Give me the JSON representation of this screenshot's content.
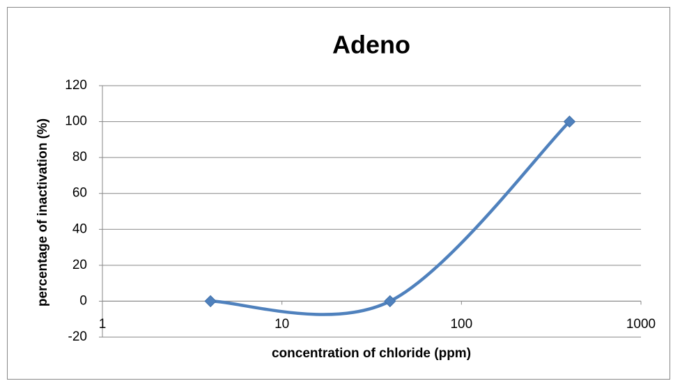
{
  "chart_data": {
    "type": "line",
    "title": "Adeno",
    "x_label": "concentration of chloride (ppm)",
    "y_label": "percentage of inactivation (%)",
    "x": [
      4,
      40,
      400
    ],
    "series": [
      {
        "name": "Adeno",
        "color": "#4f81bd",
        "values": [
          0,
          0,
          100
        ]
      }
    ],
    "xlim": [
      1,
      1000
    ],
    "xticks": [
      1,
      10,
      100,
      1000
    ],
    "xscale": "log",
    "ylim": [
      -20,
      120
    ],
    "yticks": [
      -20,
      0,
      20,
      40,
      60,
      80,
      100,
      120
    ],
    "grid": true,
    "smooth": true,
    "marker": "diamond"
  }
}
